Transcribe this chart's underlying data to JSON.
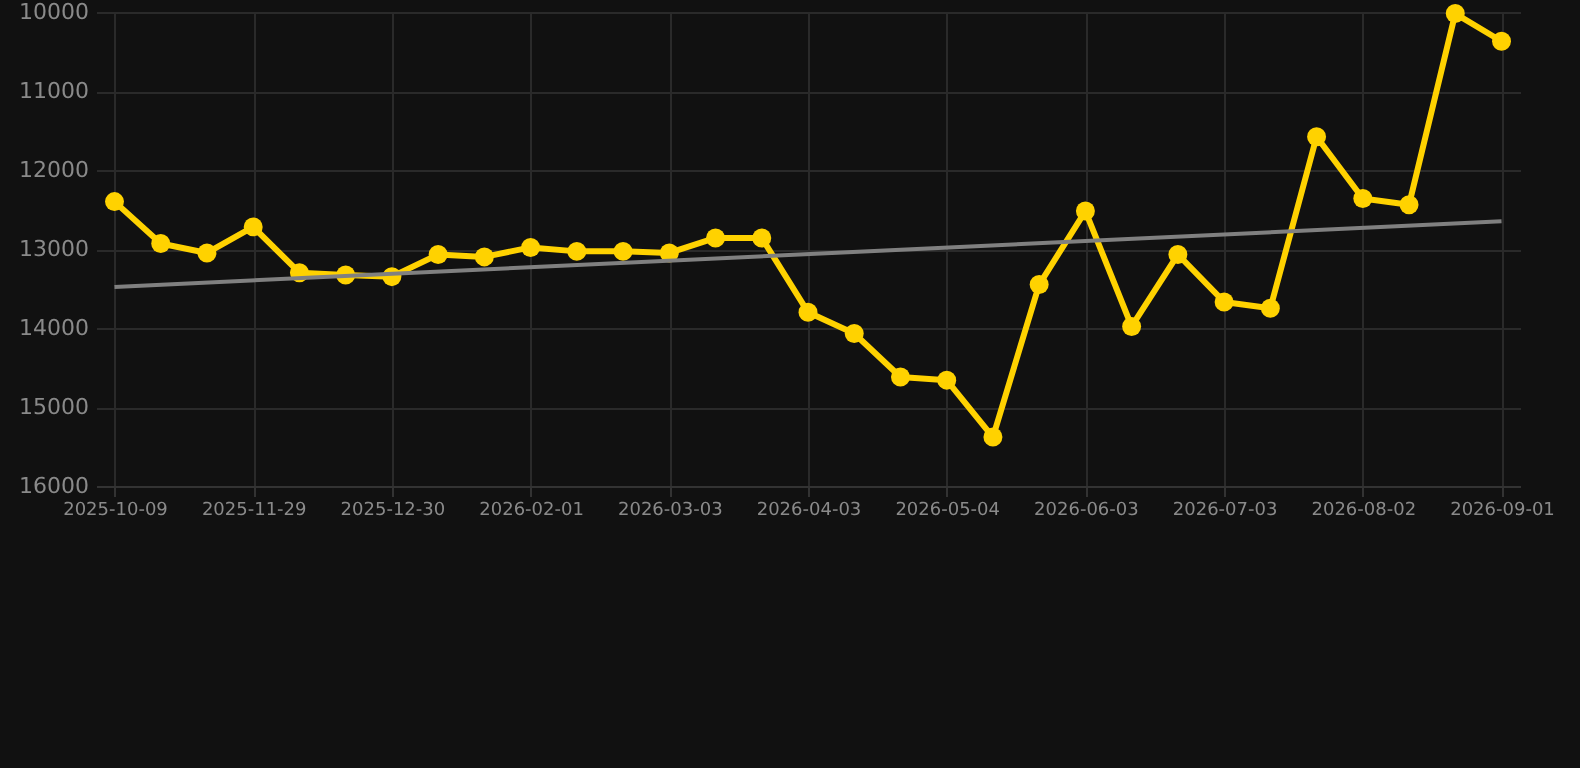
{
  "chart_data": {
    "type": "line",
    "categories": [
      "2025-10-09",
      null,
      null,
      "2025-11-29",
      null,
      null,
      "2025-12-30",
      null,
      null,
      "2026-02-01",
      null,
      null,
      "2026-03-03",
      null,
      null,
      "2026-04-03",
      null,
      null,
      "2026-05-04",
      null,
      null,
      "2026-06-03",
      null,
      null,
      "2026-07-03",
      null,
      null,
      "2026-08-02",
      null,
      null,
      "2026-09-01"
    ],
    "series": [
      {
        "color": "#ffd200",
        "marker": "circle",
        "values": [
          12400,
          12930,
          13050,
          12720,
          13300,
          13330,
          13350,
          13070,
          13100,
          12980,
          13030,
          13030,
          13050,
          12860,
          12860,
          13800,
          14070,
          14620,
          14660,
          15380,
          13450,
          12520,
          13980,
          13070,
          13670,
          13750,
          11580,
          12360,
          12440,
          10020,
          10370
        ]
      },
      {
        "type": "line",
        "color": "#808080",
        "marker": "none",
        "values": [
          13480,
          null,
          null,
          null,
          null,
          null,
          null,
          null,
          null,
          null,
          null,
          null,
          null,
          null,
          null,
          null,
          null,
          null,
          null,
          null,
          null,
          null,
          null,
          null,
          null,
          null,
          null,
          null,
          null,
          null,
          12650
        ]
      }
    ],
    "ylim": [
      16000,
      10000
    ],
    "yticks": [
      10000,
      11000,
      12000,
      13000,
      14000,
      15000,
      16000
    ],
    "grid": true
  }
}
